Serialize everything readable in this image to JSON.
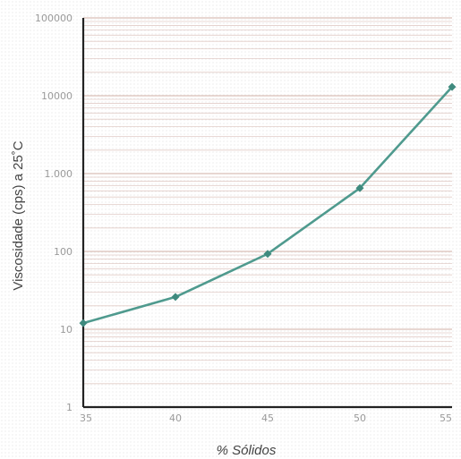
{
  "chart_data": {
    "type": "line",
    "title": "",
    "xlabel": "% Sólidos",
    "ylabel": "Viscosidade (cps) a 25˚C",
    "y_scale": "log",
    "ylim": [
      1,
      100000
    ],
    "xlim": [
      35,
      55
    ],
    "x_ticks": [
      35,
      40,
      45,
      50,
      55
    ],
    "x_tick_labels": [
      "35",
      "40",
      "45",
      "50",
      "55"
    ],
    "y_ticks": [
      1,
      10,
      100,
      1000,
      10000,
      100000
    ],
    "y_tick_labels": [
      "1",
      "10",
      "100",
      "1.000",
      "10000",
      "100000"
    ],
    "grid": "horizontal minor log gridlines",
    "legend": "none",
    "series": [
      {
        "x": [
          35,
          40,
          45,
          50,
          55
        ],
        "values": [
          12,
          26,
          93,
          650,
          13000
        ]
      }
    ],
    "colors": {
      "line": "#4f9a8e",
      "marker": "#3f8a7e",
      "axis": "#222222",
      "grid": "#d6b8b0"
    }
  }
}
